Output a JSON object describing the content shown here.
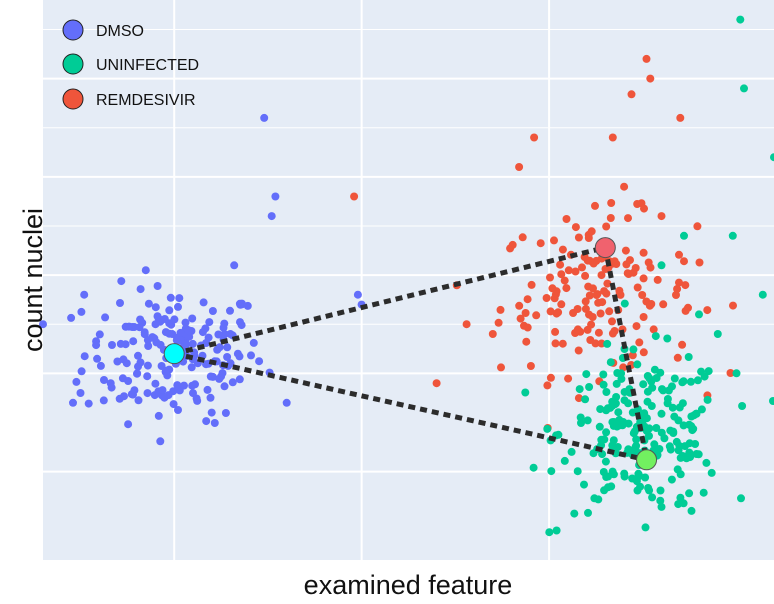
{
  "chart_data": {
    "type": "scatter",
    "xlabel": "examined feature",
    "ylabel": "count nuclei",
    "xlim": [
      -0.35,
      1.6
    ],
    "ylim": [
      -1.45,
      1.4
    ],
    "grid": true,
    "tick_labels_shown": false,
    "legend_position": "top-left",
    "plot_background": "#E5ECF6",
    "grid_color": "#FFFFFF",
    "series": [
      {
        "name": "DMSO",
        "color": "#636EFA",
        "center": [
          0.0,
          -0.4
        ],
        "spread": [
          0.12,
          0.17
        ],
        "n_points": 200,
        "points": [
          [
            -0.25,
            -0.6
          ],
          [
            -0.27,
            -0.65
          ],
          [
            -0.24,
            -0.1
          ],
          [
            0.24,
            0.8
          ],
          [
            0.26,
            0.3
          ],
          [
            0.27,
            0.4
          ],
          [
            -0.35,
            -0.25
          ],
          [
            0.16,
            0.05
          ],
          [
            0.49,
            -0.1
          ],
          [
            0.5,
            -0.15
          ],
          [
            0.15,
            -0.3
          ],
          [
            0.17,
            -0.4
          ],
          [
            -0.05,
            -0.25
          ],
          [
            0.1,
            -0.7
          ],
          [
            0.3,
            -0.65
          ]
        ]
      },
      {
        "name": "UNINFECTED",
        "color": "#00CC96",
        "center": [
          1.25,
          -0.8
        ],
        "spread": [
          0.11,
          0.2
        ],
        "n_points": 230,
        "points": [
          [
            1.51,
            1.3
          ],
          [
            1.52,
            0.95
          ],
          [
            1.49,
            0.2
          ],
          [
            1.57,
            -0.1
          ],
          [
            1.6,
            0.6
          ],
          [
            1.02,
            -1.3
          ],
          [
            1.5,
            -0.5
          ],
          [
            1.4,
            -0.2
          ],
          [
            1.36,
            0.2
          ],
          [
            1.3,
            0.05
          ],
          [
            1.45,
            -0.3
          ],
          [
            1.06,
            -0.9
          ],
          [
            1.38,
            -1.2
          ],
          [
            1.3,
            -1.18
          ]
        ]
      },
      {
        "name": "REMDESIVIR",
        "color": "#EF553B",
        "center": [
          1.13,
          -0.1
        ],
        "spread": [
          0.13,
          0.2
        ],
        "n_points": 170,
        "points": [
          [
            0.92,
            0.55
          ],
          [
            1.26,
            1.1
          ],
          [
            1.27,
            1.0
          ],
          [
            1.22,
            0.92
          ],
          [
            1.17,
            0.7
          ],
          [
            0.78,
            -0.25
          ],
          [
            0.85,
            -0.3
          ],
          [
            0.48,
            0.4
          ],
          [
            0.96,
            0.7
          ],
          [
            1.3,
            0.3
          ],
          [
            0.7,
            -0.55
          ],
          [
            1.35,
            0.8
          ],
          [
            1.2,
            0.45
          ]
        ]
      }
    ],
    "centroids": [
      {
        "name": "DMSO",
        "x": 0.0,
        "y": -0.4,
        "color": "#00FFFF"
      },
      {
        "name": "REMDESIVIR",
        "x": 1.15,
        "y": 0.14,
        "color": "#F0626E"
      },
      {
        "name": "UNINFECTED",
        "x": 1.26,
        "y": -0.94,
        "color": "#72F060"
      }
    ],
    "connectors": {
      "style": "dotted",
      "color": "#2C2C2C",
      "pairs": [
        [
          0,
          1
        ],
        [
          1,
          2
        ],
        [
          0,
          2
        ]
      ]
    },
    "legend": [
      "DMSO",
      "UNINFECTED",
      "REMDESIVIR"
    ]
  }
}
